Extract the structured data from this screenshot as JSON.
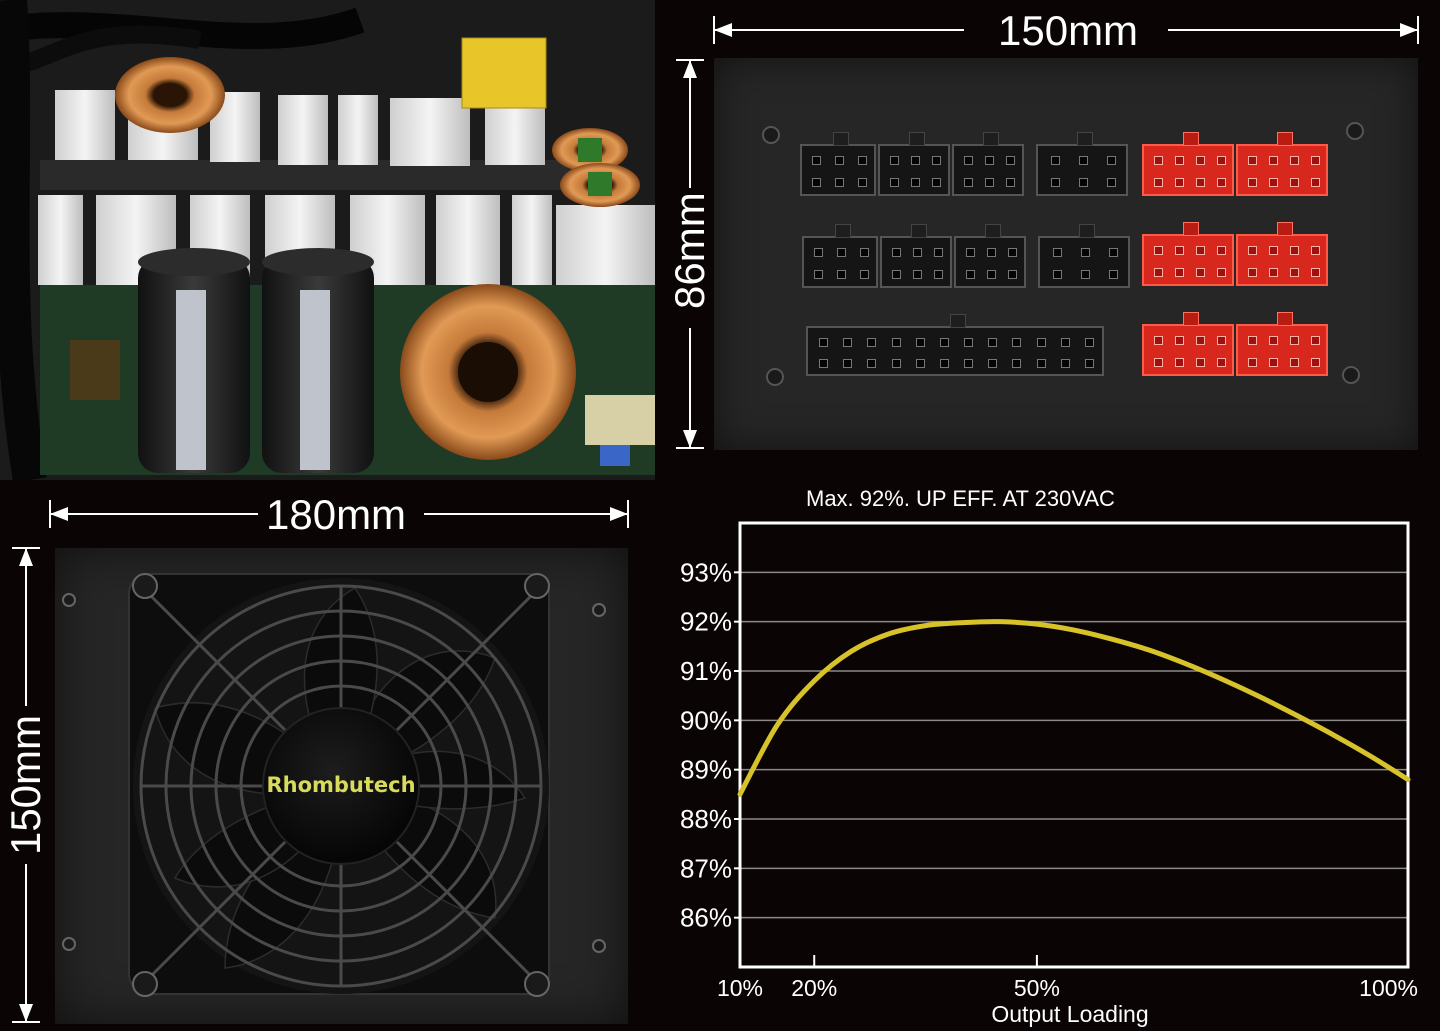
{
  "dimensions": {
    "modular_width": "150mm",
    "modular_height": "86mm",
    "fan_width": "180mm",
    "fan_height": "150mm"
  },
  "fan": {
    "brand": "Rhombutech"
  },
  "colors": {
    "background": "#0a0404",
    "curve": "#d8c22a",
    "connector_red": "#d8281e",
    "grid": "#8a8a8a"
  },
  "chart_data": {
    "type": "line",
    "title": "Max. 92%. UP EFF. AT 230VAC",
    "xlabel": "Output Loading",
    "ylabel": "",
    "x_tick_values": [
      10,
      20,
      50,
      100
    ],
    "x_tick_labels": [
      "10%",
      "20%",
      "50%",
      "100%"
    ],
    "y_tick_values": [
      86,
      87,
      88,
      89,
      90,
      91,
      92,
      93
    ],
    "y_tick_labels": [
      "86%",
      "87%",
      "88%",
      "89%",
      "90%",
      "91%",
      "92%",
      "93%"
    ],
    "xlim": [
      10,
      100
    ],
    "ylim": [
      85,
      94
    ],
    "grid": true,
    "series": [
      {
        "x": [
          10,
          15,
          20,
          25,
          30,
          35,
          40,
          45,
          50,
          55,
          60,
          65,
          70,
          75,
          80,
          85,
          90,
          95,
          100
        ],
        "y": [
          88.5,
          89.9,
          90.8,
          91.4,
          91.75,
          91.92,
          91.98,
          92.0,
          91.95,
          91.83,
          91.65,
          91.43,
          91.15,
          90.83,
          90.48,
          90.1,
          89.7,
          89.27,
          88.8
        ]
      }
    ]
  }
}
